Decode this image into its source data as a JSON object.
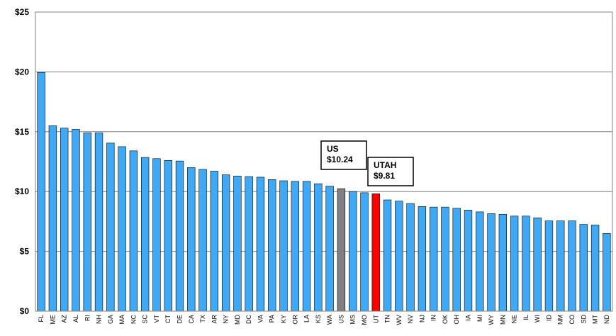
{
  "chart_data": {
    "type": "bar",
    "ylim": [
      0,
      25
    ],
    "yticks": [
      0,
      5,
      10,
      15,
      20,
      25
    ],
    "ytick_labels": [
      "$0",
      "$5",
      "$10",
      "$15",
      "$20",
      "$25"
    ],
    "grid": true,
    "categories": [
      "FL",
      "ME",
      "AZ",
      "AL",
      "RI",
      "NH",
      "GA",
      "MA",
      "NC",
      "SC",
      "VT",
      "CT",
      "DE",
      "CA",
      "TX",
      "AR",
      "NY",
      "MD",
      "DC",
      "VA",
      "PA",
      "KY",
      "OR",
      "LA",
      "KS",
      "WA",
      "US",
      "MS",
      "MO",
      "UT",
      "TN",
      "WV",
      "NV",
      "NJ",
      "IN",
      "OK",
      "OH",
      "IA",
      "MI",
      "WY",
      "MN",
      "NE",
      "IL",
      "WI",
      "ID",
      "NM",
      "CO",
      "SD",
      "MT",
      "ND"
    ],
    "values": [
      19.95,
      15.5,
      15.3,
      15.2,
      14.9,
      14.9,
      14.05,
      13.75,
      13.4,
      12.85,
      12.75,
      12.6,
      12.55,
      12.0,
      11.85,
      11.7,
      11.4,
      11.3,
      11.25,
      11.2,
      11.0,
      10.9,
      10.85,
      10.85,
      10.65,
      10.45,
      10.24,
      10.0,
      9.9,
      9.81,
      9.3,
      9.2,
      9.0,
      8.75,
      8.7,
      8.7,
      8.6,
      8.45,
      8.3,
      8.15,
      8.1,
      7.95,
      7.95,
      7.8,
      7.55,
      7.55,
      7.55,
      7.25,
      7.2,
      6.5
    ],
    "colors": {
      "default": "#3fa9f5",
      "US": "#808080",
      "UT": "#ff0000",
      "grid": "#808080"
    },
    "annotations": [
      {
        "category": "US",
        "lines": [
          "US",
          "$10.24"
        ]
      },
      {
        "category": "UT",
        "lines": [
          "UTAH",
          "$9.81"
        ]
      }
    ]
  }
}
